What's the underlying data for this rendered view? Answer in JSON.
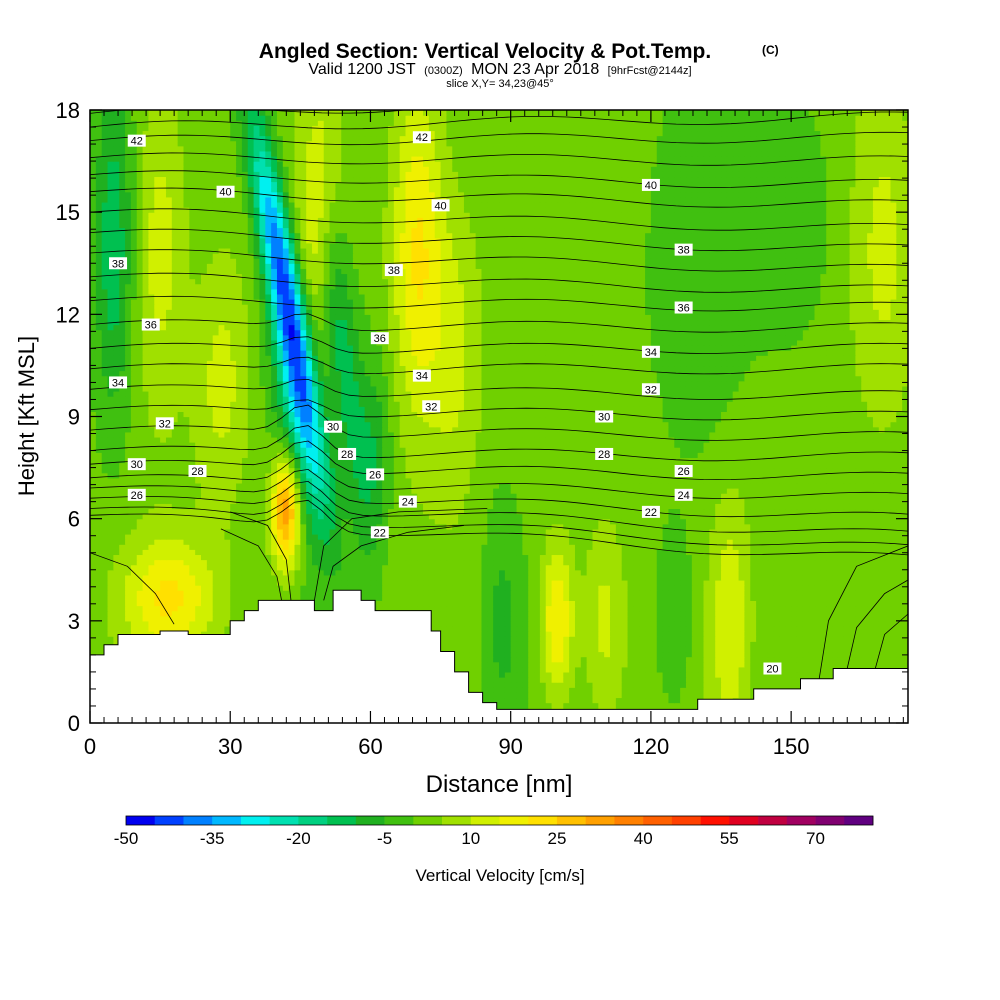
{
  "title": {
    "main": "Angled Section: Vertical Velocity & Pot.Temp.",
    "main_unit": "(C)",
    "valid_a": "Valid 1200 JST",
    "valid_b": "(0300Z)",
    "valid_c": "MON 23 Apr 2018",
    "valid_d": "[9hrFcst@2144z]",
    "slice": "slice X,Y= 34,23@45°"
  },
  "chart_data": {
    "type": "heatmap",
    "xlabel": "Distance [nm]",
    "ylabel": "Height [Kft MSL]",
    "xlim": [
      0,
      175
    ],
    "ylim": [
      0,
      18
    ],
    "xticks": [
      0,
      30,
      60,
      90,
      120,
      150
    ],
    "yticks": [
      0,
      3,
      6,
      9,
      12,
      15,
      18
    ],
    "colorbar": {
      "label": "Vertical Velocity [cm/s]",
      "tick_labels": [
        "-50",
        "-35",
        "-20",
        "-5",
        "10",
        "25",
        "40",
        "55",
        "70"
      ],
      "tick_values": [
        -50,
        -35,
        -20,
        -5,
        10,
        25,
        40,
        55,
        70
      ],
      "min": -50,
      "max": 80,
      "step": 5,
      "colors": [
        "#0000f0",
        "#0040ff",
        "#0080ff",
        "#00b8ff",
        "#00f0f0",
        "#00e0b0",
        "#00d080",
        "#00c050",
        "#20b020",
        "#40c010",
        "#70d000",
        "#a0e000",
        "#d0f000",
        "#f0f000",
        "#ffe000",
        "#ffc000",
        "#ffa000",
        "#ff8000",
        "#ff6000",
        "#ff4000",
        "#ff1000",
        "#e00020",
        "#c00040",
        "#a00060",
        "#800070",
        "#600080"
      ]
    },
    "terrain_profile": {
      "x": [
        0,
        3,
        3,
        6,
        6,
        9,
        9,
        15,
        15,
        21,
        21,
        30,
        30,
        33,
        33,
        36,
        36,
        48,
        48,
        52,
        52,
        58,
        58,
        61,
        61,
        64,
        64,
        73,
        73,
        75,
        75,
        78,
        78,
        81,
        81,
        84,
        84,
        87,
        87,
        90,
        90,
        130,
        130,
        142,
        142,
        146,
        146,
        152,
        152,
        159,
        159,
        175
      ],
      "height": [
        2.0,
        2.0,
        2.3,
        2.3,
        2.6,
        2.6,
        2.6,
        2.6,
        2.7,
        2.7,
        2.6,
        2.6,
        3.0,
        3.0,
        3.3,
        3.3,
        3.6,
        3.6,
        3.3,
        3.3,
        3.9,
        3.9,
        3.6,
        3.6,
        3.3,
        3.3,
        3.3,
        3.3,
        2.7,
        2.7,
        2.1,
        2.1,
        1.5,
        1.5,
        0.9,
        0.9,
        0.6,
        0.6,
        0.4,
        0.4,
        0.4,
        0.4,
        0.7,
        0.7,
        1.0,
        1.0,
        1.0,
        1.0,
        1.3,
        1.3,
        1.6,
        1.6
      ]
    },
    "velocity_features": [
      {
        "x": 42,
        "height": 12.5,
        "value": -45,
        "sx": 2.6,
        "sy": 3.8,
        "tilt": -1.3
      },
      {
        "x": 44,
        "height": 8.5,
        "value": -15,
        "sx": 3.5,
        "sy": 2.5,
        "tilt": -1.0
      },
      {
        "x": 54,
        "height": 11,
        "value": -15,
        "sx": 2.6,
        "sy": 4.0,
        "tilt": -0.8
      },
      {
        "x": 61,
        "height": 8,
        "value": -10,
        "sx": 2.5,
        "sy": 2.0,
        "tilt": 0
      },
      {
        "x": 5,
        "height": 14,
        "value": -15,
        "sx": 3.0,
        "sy": 3.5,
        "tilt": 0
      },
      {
        "x": 42,
        "height": 6.3,
        "value": 35,
        "sx": 2.2,
        "sy": 1.2,
        "tilt": 0
      },
      {
        "x": 70,
        "height": 14,
        "value": 20,
        "sx": 4.0,
        "sy": 3.5,
        "tilt": 0
      },
      {
        "x": 49,
        "height": 15.5,
        "value": 15,
        "sx": 3.0,
        "sy": 2.5,
        "tilt": 0
      },
      {
        "x": 100,
        "height": 3.0,
        "value": 20,
        "sx": 2.5,
        "sy": 1.6,
        "tilt": 0
      },
      {
        "x": 17,
        "height": 3.7,
        "value": 18,
        "sx": 7.0,
        "sy": 1.2,
        "tilt": 0
      },
      {
        "x": 15,
        "height": 14,
        "value": 12,
        "sx": 4.0,
        "sy": 3.5,
        "tilt": 0
      },
      {
        "x": 28,
        "height": 10,
        "value": 10,
        "sx": 4.0,
        "sy": 2.5,
        "tilt": 0
      },
      {
        "x": 78,
        "height": 11,
        "value": 10,
        "sx": 4.0,
        "sy": 3.0,
        "tilt": 0
      },
      {
        "x": 110,
        "height": 3.0,
        "value": 10,
        "sx": 3.0,
        "sy": 2.0,
        "tilt": 0
      },
      {
        "x": 137,
        "height": 3.0,
        "value": 12,
        "sx": 3.0,
        "sy": 2.5,
        "tilt": 0
      },
      {
        "x": 170,
        "height": 14,
        "value": 10,
        "sx": 5.0,
        "sy": 3.5,
        "tilt": 0
      },
      {
        "x": 88,
        "height": 3.0,
        "value": -8,
        "sx": 3.0,
        "sy": 2.5,
        "tilt": 0
      },
      {
        "x": 125,
        "height": 3.0,
        "value": -8,
        "sx": 3.0,
        "sy": 2.0,
        "tilt": 0
      },
      {
        "x": 150,
        "height": 15,
        "value": -7,
        "sx": 8.0,
        "sy": 3.0,
        "tilt": 0
      },
      {
        "x": 130,
        "height": 12,
        "value": -5,
        "sx": 6.0,
        "sy": 3.0,
        "tilt": 0
      }
    ],
    "theta_labels": [
      {
        "text": "42",
        "x": 10,
        "height": 17.1
      },
      {
        "text": "42",
        "x": 71,
        "height": 17.2
      },
      {
        "text": "40",
        "x": 29,
        "height": 15.6
      },
      {
        "text": "40",
        "x": 75,
        "height": 15.2
      },
      {
        "text": "40",
        "x": 120,
        "height": 15.8
      },
      {
        "text": "38",
        "x": 6,
        "height": 13.5
      },
      {
        "text": "38",
        "x": 65,
        "height": 13.3
      },
      {
        "text": "38",
        "x": 127,
        "height": 13.9
      },
      {
        "text": "36",
        "x": 13,
        "height": 11.7
      },
      {
        "text": "36",
        "x": 62,
        "height": 11.3
      },
      {
        "text": "36",
        "x": 127,
        "height": 12.2
      },
      {
        "text": "34",
        "x": 6,
        "height": 10.0
      },
      {
        "text": "34",
        "x": 71,
        "height": 10.2
      },
      {
        "text": "34",
        "x": 120,
        "height": 10.9
      },
      {
        "text": "32",
        "x": 16,
        "height": 8.8
      },
      {
        "text": "32",
        "x": 73,
        "height": 9.3
      },
      {
        "text": "32",
        "x": 120,
        "height": 9.8
      },
      {
        "text": "30",
        "x": 10,
        "height": 7.6
      },
      {
        "text": "30",
        "x": 52,
        "height": 8.7
      },
      {
        "text": "30",
        "x": 110,
        "height": 9.0
      },
      {
        "text": "28",
        "x": 23,
        "height": 7.4
      },
      {
        "text": "28",
        "x": 55,
        "height": 7.9
      },
      {
        "text": "28",
        "x": 110,
        "height": 7.9
      },
      {
        "text": "26",
        "x": 10,
        "height": 6.7
      },
      {
        "text": "26",
        "x": 61,
        "height": 7.3
      },
      {
        "text": "26",
        "x": 127,
        "height": 7.4
      },
      {
        "text": "24",
        "x": 68,
        "height": 6.5
      },
      {
        "text": "24",
        "x": 127,
        "height": 6.7
      },
      {
        "text": "22",
        "x": 62,
        "height": 5.6
      },
      {
        "text": "22",
        "x": 120,
        "height": 6.2
      },
      {
        "text": "20",
        "x": 146,
        "height": 1.6
      }
    ],
    "theta_lines": [
      {
        "h0": 17.9,
        "h1": 18.4
      },
      {
        "h0": 17.5,
        "h1": 17.8
      },
      {
        "h0": 17.1,
        "h1": 17.2
      },
      {
        "h0": 16.6,
        "h1": 16.5
      },
      {
        "h0": 16.1,
        "h1": 15.8
      },
      {
        "h0": 15.6,
        "h1": 15.2
      },
      {
        "h0": 15.0,
        "h1": 14.5
      },
      {
        "h0": 14.4,
        "h1": 13.9
      },
      {
        "h0": 13.8,
        "h1": 13.3
      },
      {
        "h0": 13.1,
        "h1": 12.7
      },
      {
        "h0": 12.4,
        "h1": 12.2
      },
      {
        "h0": 11.7,
        "h1": 11.6
      },
      {
        "h0": 11.0,
        "h1": 11.0
      },
      {
        "h0": 10.4,
        "h1": 10.4
      },
      {
        "h0": 9.8,
        "h1": 9.6
      },
      {
        "h0": 9.2,
        "h1": 9.0
      },
      {
        "h0": 8.6,
        "h1": 8.4
      },
      {
        "h0": 8.0,
        "h1": 7.8
      },
      {
        "h0": 7.6,
        "h1": 7.2
      },
      {
        "h0": 7.2,
        "h1": 6.6
      },
      {
        "h0": 6.9,
        "h1": 6.0
      },
      {
        "h0": 6.6,
        "h1": 5.5
      },
      {
        "h0": 6.3,
        "h1": 5.1
      },
      {
        "h0": 6.1,
        "h1": 4.8
      }
    ]
  }
}
